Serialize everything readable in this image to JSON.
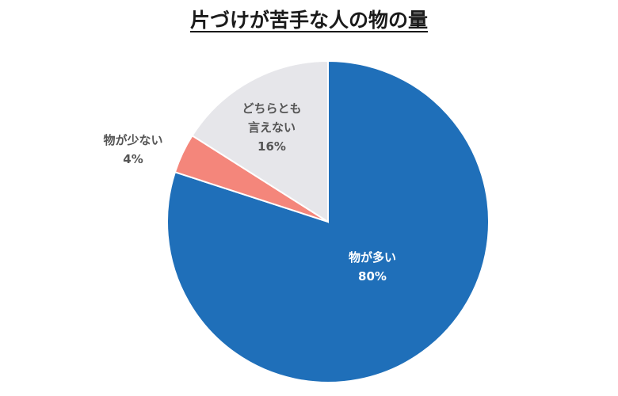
{
  "chart_data": {
    "type": "pie",
    "title": "片づけが苦手な人の物の量",
    "start": "12 o'clock",
    "direction": "clockwise",
    "slices": [
      {
        "label": "物が多い",
        "value": 80,
        "value_label": "80%",
        "color": "#1f6fb9",
        "label_color": "#ffffff",
        "label_position": "inside"
      },
      {
        "label": "物が少ない",
        "value": 4,
        "value_label": "4%",
        "color": "#f4867b",
        "label_color": "#555555",
        "label_position": "outside"
      },
      {
        "label": "どちらとも言えない",
        "label_lines": [
          "どちらとも",
          "言えない"
        ],
        "value": 16,
        "value_label": "16%",
        "color": "#e6e6ea",
        "label_color": "#555555",
        "label_position": "inside"
      }
    ]
  }
}
